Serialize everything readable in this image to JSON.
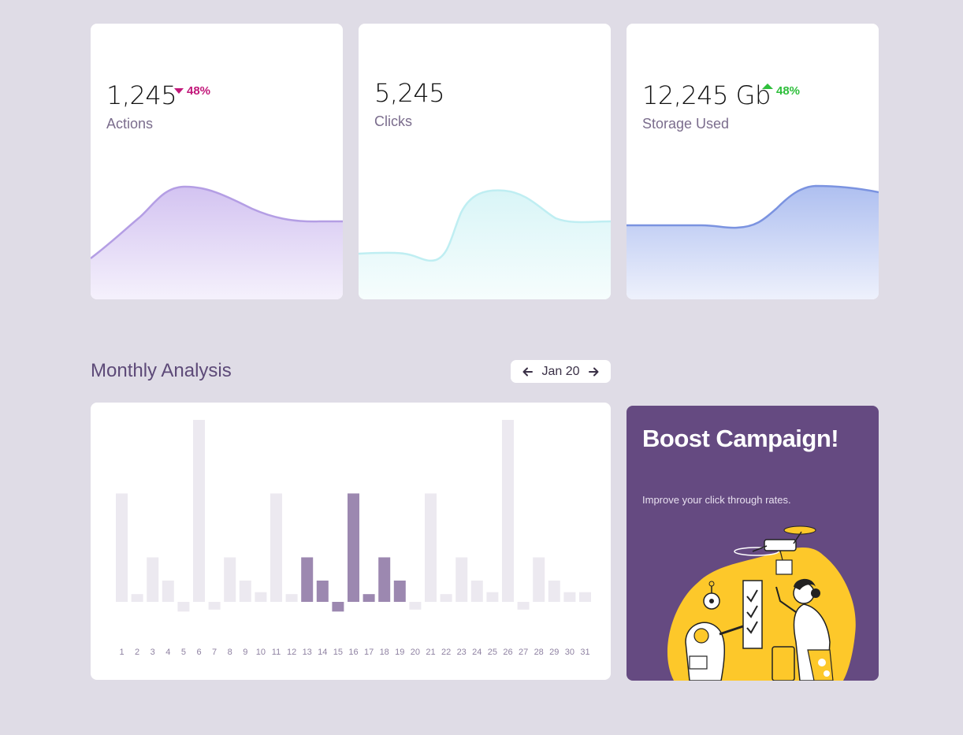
{
  "stats": {
    "actions": {
      "value": "1,245",
      "label": "Actions",
      "change": "48%",
      "trend": "down",
      "color": "#b9a0e6"
    },
    "clicks": {
      "value": "5,245",
      "label": "Clicks",
      "color": "#bdeef2"
    },
    "storage": {
      "value": "12,245 Gb",
      "label": "Storage Used",
      "change": "48%",
      "trend": "up",
      "color": "#7f96e2"
    }
  },
  "monthly": {
    "title": "Monthly Analysis",
    "period": "Jan 20"
  },
  "chart_data": {
    "type": "bar",
    "title": "Monthly Analysis",
    "categories": [
      "1",
      "2",
      "3",
      "4",
      "5",
      "6",
      "7",
      "8",
      "9",
      "10",
      "11",
      "12",
      "13",
      "14",
      "15",
      "16",
      "17",
      "18",
      "19",
      "20",
      "21",
      "22",
      "23",
      "24",
      "25",
      "26",
      "27",
      "28",
      "29",
      "30",
      "31"
    ],
    "values": [
      56,
      4,
      23,
      11,
      -5,
      94,
      -4,
      23,
      11,
      5,
      56,
      4,
      23,
      11,
      -5,
      56,
      4,
      23,
      11,
      -4,
      56,
      4,
      23,
      11,
      5,
      94,
      -4,
      23,
      11,
      5,
      5
    ],
    "highlighted": [
      "13",
      "14",
      "15",
      "16",
      "17",
      "18",
      "19"
    ],
    "colors": {
      "normal": "#ece9f0",
      "highlight": "#9c88b0",
      "axis_label": "#8f82a2"
    },
    "ylim": [
      -10,
      100
    ]
  },
  "promo": {
    "title": "Boost Campaign!",
    "subtitle": "Improve your click through rates."
  }
}
